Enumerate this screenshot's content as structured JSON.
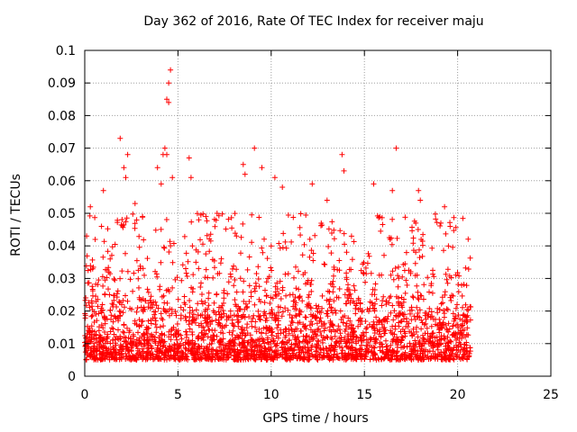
{
  "chart_data": {
    "type": "scatter",
    "title": "Day 362 of 2016, Rate Of TEC Index for receiver maju",
    "xlabel": "GPS time / hours",
    "ylabel": "ROTI / TECUs",
    "xlim": [
      0,
      25
    ],
    "ylim": [
      0,
      0.1
    ],
    "xticks": [
      0,
      5,
      10,
      15,
      20,
      25
    ],
    "xtick_labels": [
      "0",
      "5",
      "10",
      "15",
      "20",
      "25"
    ],
    "yticks": [
      0,
      0.01,
      0.02,
      0.03,
      0.04,
      0.05,
      0.06,
      0.07,
      0.08,
      0.09,
      0.1
    ],
    "ytick_labels": [
      "0",
      "0.01",
      "0.02",
      "0.03",
      "0.04",
      "0.05",
      "0.06",
      "0.07",
      "0.08",
      "0.09",
      "0.1"
    ],
    "grid": true,
    "marker": "+",
    "color": "#ff0000",
    "series": [
      {
        "name": "ROTI",
        "x_range": [
          0,
          20.7
        ],
        "typical_range": [
          0.005,
          0.03
        ],
        "outliers": [
          {
            "x": 0.1,
            "y": 0.043
          },
          {
            "x": 0.3,
            "y": 0.052
          },
          {
            "x": 0.9,
            "y": 0.046
          },
          {
            "x": 1.0,
            "y": 0.057
          },
          {
            "x": 1.9,
            "y": 0.073
          },
          {
            "x": 2.1,
            "y": 0.064
          },
          {
            "x": 2.2,
            "y": 0.061
          },
          {
            "x": 2.3,
            "y": 0.068
          },
          {
            "x": 2.7,
            "y": 0.053
          },
          {
            "x": 3.1,
            "y": 0.049
          },
          {
            "x": 3.9,
            "y": 0.064
          },
          {
            "x": 4.1,
            "y": 0.059
          },
          {
            "x": 4.2,
            "y": 0.068
          },
          {
            "x": 4.3,
            "y": 0.07
          },
          {
            "x": 4.4,
            "y": 0.068
          },
          {
            "x": 4.4,
            "y": 0.085
          },
          {
            "x": 4.5,
            "y": 0.084
          },
          {
            "x": 4.5,
            "y": 0.09
          },
          {
            "x": 4.6,
            "y": 0.094
          },
          {
            "x": 4.7,
            "y": 0.061
          },
          {
            "x": 5.6,
            "y": 0.067
          },
          {
            "x": 5.7,
            "y": 0.061
          },
          {
            "x": 6.5,
            "y": 0.049
          },
          {
            "x": 7.1,
            "y": 0.05
          },
          {
            "x": 8.5,
            "y": 0.065
          },
          {
            "x": 8.6,
            "y": 0.062
          },
          {
            "x": 9.1,
            "y": 0.07
          },
          {
            "x": 9.5,
            "y": 0.064
          },
          {
            "x": 10.2,
            "y": 0.061
          },
          {
            "x": 10.6,
            "y": 0.058
          },
          {
            "x": 12.2,
            "y": 0.059
          },
          {
            "x": 13.0,
            "y": 0.054
          },
          {
            "x": 13.8,
            "y": 0.068
          },
          {
            "x": 13.9,
            "y": 0.063
          },
          {
            "x": 15.5,
            "y": 0.059
          },
          {
            "x": 16.5,
            "y": 0.057
          },
          {
            "x": 16.7,
            "y": 0.07
          },
          {
            "x": 17.9,
            "y": 0.057
          },
          {
            "x": 18.0,
            "y": 0.054
          },
          {
            "x": 19.1,
            "y": 0.047
          },
          {
            "x": 19.3,
            "y": 0.052
          },
          {
            "x": 19.6,
            "y": 0.046
          }
        ]
      }
    ]
  }
}
